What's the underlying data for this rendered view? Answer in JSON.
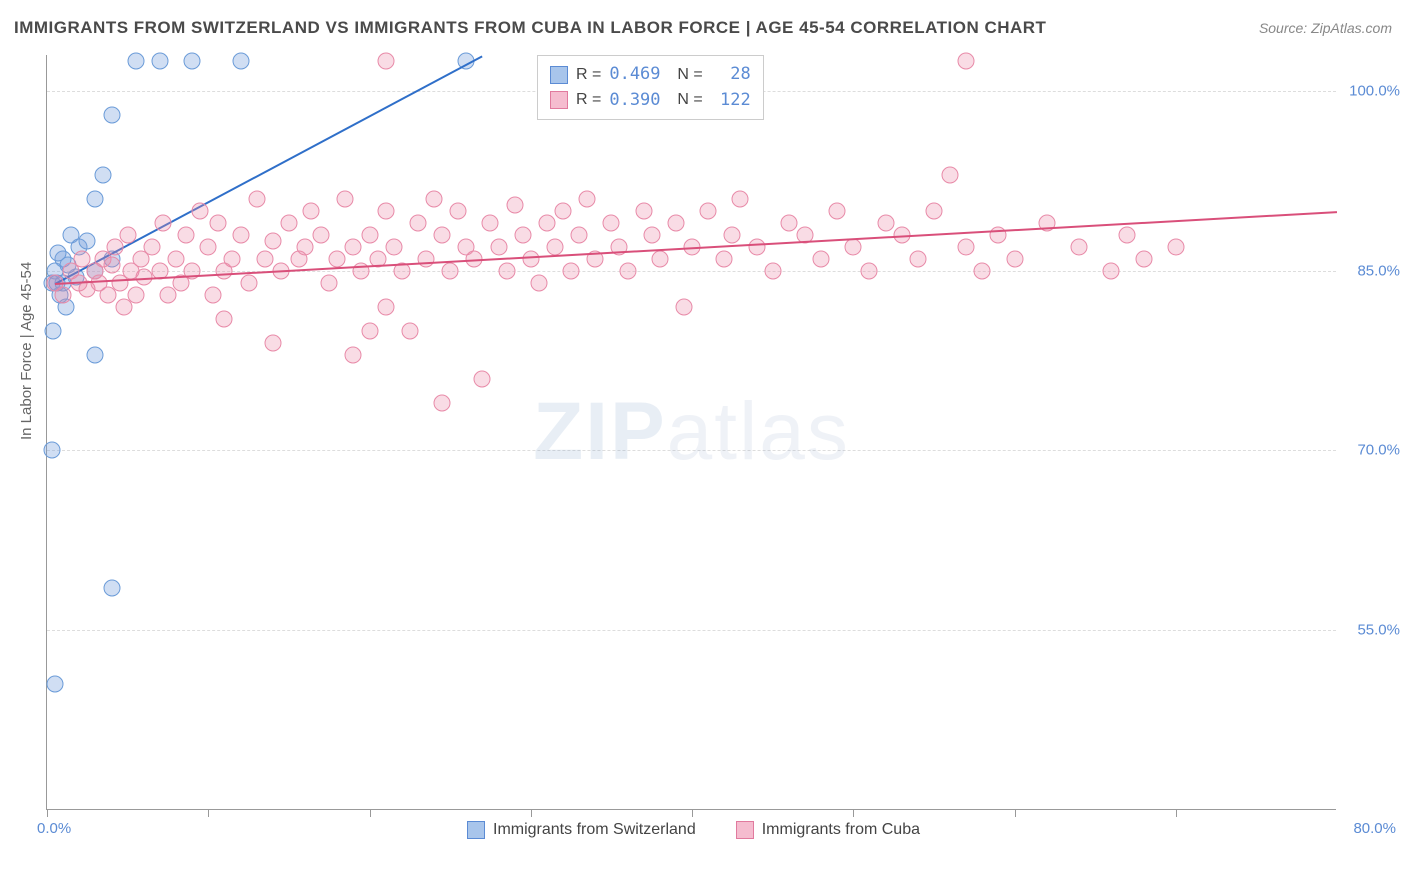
{
  "title": "IMMIGRANTS FROM SWITZERLAND VS IMMIGRANTS FROM CUBA IN LABOR FORCE | AGE 45-54 CORRELATION CHART",
  "source": "Source: ZipAtlas.com",
  "ylabel": "In Labor Force | Age 45-54",
  "watermark_bold": "ZIP",
  "watermark_light": "atlas",
  "chart": {
    "type": "scatter",
    "xlim": [
      0.0,
      80.0
    ],
    "ylim": [
      40.0,
      103.0
    ],
    "y_ticks": [
      55.0,
      70.0,
      85.0,
      100.0
    ],
    "y_tick_labels": [
      "55.0%",
      "70.0%",
      "85.0%",
      "100.0%"
    ],
    "x_tick_positions": [
      0,
      10,
      20,
      30,
      40,
      50,
      60,
      70
    ],
    "x_min_label": "0.0%",
    "x_max_label": "80.0%",
    "background_color": "#ffffff",
    "grid_color": "#dddddd",
    "axis_color": "#999999",
    "series": [
      {
        "name": "Immigrants from Switzerland",
        "color_fill": "rgba(120,160,220,0.35)",
        "color_stroke": "#6a9bd8",
        "legend_fill": "#a8c5eb",
        "legend_stroke": "#5b8bd4",
        "R": "0.469",
        "N": "28",
        "trend": {
          "x1": 0.5,
          "y1": 84.0,
          "x2": 27.0,
          "y2": 103.0,
          "color": "#2f6fc9"
        },
        "points": [
          [
            0.3,
            84.0
          ],
          [
            0.5,
            85.0
          ],
          [
            0.8,
            83.0
          ],
          [
            1.0,
            86.0
          ],
          [
            1.2,
            82.0
          ],
          [
            1.5,
            88.0
          ],
          [
            0.4,
            80.0
          ],
          [
            1.8,
            84.5
          ],
          [
            2.0,
            87.0
          ],
          [
            0.6,
            84.0
          ],
          [
            2.5,
            87.5
          ],
          [
            3.0,
            85.0
          ],
          [
            3.0,
            91.0
          ],
          [
            3.5,
            93.0
          ],
          [
            4.0,
            86.0
          ],
          [
            4.0,
            98.0
          ],
          [
            5.5,
            102.5
          ],
          [
            7.0,
            102.5
          ],
          [
            9.0,
            102.5
          ],
          [
            12.0,
            102.5
          ],
          [
            26.0,
            102.5
          ],
          [
            3.0,
            78.0
          ],
          [
            0.3,
            70.0
          ],
          [
            4.0,
            58.5
          ],
          [
            0.5,
            50.5
          ],
          [
            0.7,
            86.5
          ],
          [
            1.0,
            84.0
          ],
          [
            1.3,
            85.5
          ]
        ]
      },
      {
        "name": "Immigrants from Cuba",
        "color_fill": "rgba(235,140,170,0.30)",
        "color_stroke": "#e88aa8",
        "legend_fill": "#f5bccf",
        "legend_stroke": "#e17a9e",
        "R": "0.390",
        "N": "122",
        "trend": {
          "x1": 0.5,
          "y1": 84.0,
          "x2": 80.0,
          "y2": 90.0,
          "color": "#d94f7a"
        },
        "points": [
          [
            0.5,
            84
          ],
          [
            1,
            83
          ],
          [
            1.5,
            85
          ],
          [
            2,
            84
          ],
          [
            2.2,
            86
          ],
          [
            2.5,
            83.5
          ],
          [
            3,
            85
          ],
          [
            3.2,
            84
          ],
          [
            3.5,
            86
          ],
          [
            3.8,
            83
          ],
          [
            4,
            85.5
          ],
          [
            4.2,
            87
          ],
          [
            4.5,
            84
          ],
          [
            4.8,
            82
          ],
          [
            5,
            88
          ],
          [
            5.2,
            85
          ],
          [
            5.5,
            83
          ],
          [
            5.8,
            86
          ],
          [
            6,
            84.5
          ],
          [
            6.5,
            87
          ],
          [
            7,
            85
          ],
          [
            7.2,
            89
          ],
          [
            7.5,
            83
          ],
          [
            8,
            86
          ],
          [
            8.3,
            84
          ],
          [
            8.6,
            88
          ],
          [
            9,
            85
          ],
          [
            9.5,
            90
          ],
          [
            10,
            87
          ],
          [
            10.3,
            83
          ],
          [
            10.6,
            89
          ],
          [
            11,
            85
          ],
          [
            11.5,
            86
          ],
          [
            12,
            88
          ],
          [
            12.5,
            84
          ],
          [
            13,
            91
          ],
          [
            13.5,
            86
          ],
          [
            14,
            87.5
          ],
          [
            14.5,
            85
          ],
          [
            15,
            89
          ],
          [
            15.6,
            86
          ],
          [
            16,
            87
          ],
          [
            16.4,
            90
          ],
          [
            17,
            88
          ],
          [
            17.5,
            84
          ],
          [
            18,
            86
          ],
          [
            18.5,
            91
          ],
          [
            19,
            87
          ],
          [
            19.5,
            85
          ],
          [
            20,
            88
          ],
          [
            20.5,
            86
          ],
          [
            21,
            90
          ],
          [
            21.5,
            87
          ],
          [
            22,
            85
          ],
          [
            22.5,
            80
          ],
          [
            23,
            89
          ],
          [
            23.5,
            86
          ],
          [
            24,
            91
          ],
          [
            24.5,
            88
          ],
          [
            25,
            85
          ],
          [
            25.5,
            90
          ],
          [
            26,
            87
          ],
          [
            26.5,
            86
          ],
          [
            27,
            76
          ],
          [
            27.5,
            89
          ],
          [
            28,
            87
          ],
          [
            28.5,
            85
          ],
          [
            29,
            90.5
          ],
          [
            29.5,
            88
          ],
          [
            30,
            86
          ],
          [
            30.5,
            84
          ],
          [
            31,
            89
          ],
          [
            31.5,
            87
          ],
          [
            32,
            90
          ],
          [
            32.5,
            85
          ],
          [
            33,
            88
          ],
          [
            33.5,
            91
          ],
          [
            34,
            86
          ],
          [
            35,
            89
          ],
          [
            35.5,
            87
          ],
          [
            36,
            85
          ],
          [
            37,
            90
          ],
          [
            37.5,
            88
          ],
          [
            38,
            86
          ],
          [
            39,
            89
          ],
          [
            39.5,
            82
          ],
          [
            40,
            87
          ],
          [
            41,
            90
          ],
          [
            42,
            86
          ],
          [
            42.5,
            88
          ],
          [
            43,
            91
          ],
          [
            44,
            87
          ],
          [
            45,
            85
          ],
          [
            46,
            89
          ],
          [
            47,
            88
          ],
          [
            48,
            86
          ],
          [
            49,
            90
          ],
          [
            50,
            87
          ],
          [
            51,
            85
          ],
          [
            52,
            89
          ],
          [
            53,
            88
          ],
          [
            54,
            86
          ],
          [
            55,
            90
          ],
          [
            56,
            93
          ],
          [
            57,
            87
          ],
          [
            58,
            85
          ],
          [
            59,
            88
          ],
          [
            60,
            86
          ],
          [
            62,
            89
          ],
          [
            64,
            87
          ],
          [
            66,
            85
          ],
          [
            67,
            88
          ],
          [
            68,
            86
          ],
          [
            70,
            87
          ],
          [
            57,
            102.5
          ],
          [
            21,
            102.5
          ],
          [
            11,
            81
          ],
          [
            14,
            79
          ],
          [
            19,
            78
          ],
          [
            20,
            80
          ],
          [
            21,
            82
          ],
          [
            24.5,
            74
          ]
        ]
      }
    ]
  },
  "legend_bottom": [
    {
      "label": "Immigrants from Switzerland",
      "fill": "#a8c5eb",
      "stroke": "#5b8bd4"
    },
    {
      "label": "Immigrants from Cuba",
      "fill": "#f5bccf",
      "stroke": "#e17a9e"
    }
  ]
}
